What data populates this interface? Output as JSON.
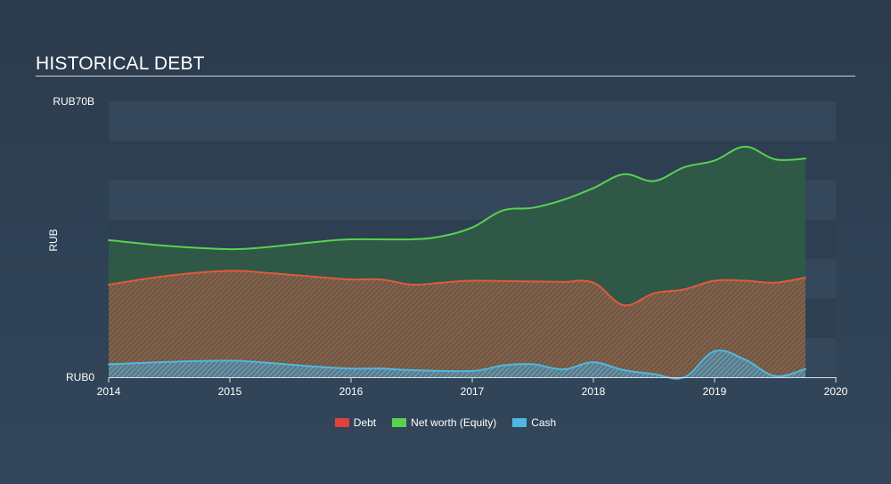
{
  "title": "HISTORICAL DEBT",
  "colors": {
    "debt": "#e0413a",
    "debt_line": "#e05a3a",
    "equity": "#59d24f",
    "cash": "#4fb8e0"
  },
  "legend": [
    {
      "label": "Debt",
      "color": "#e0413a"
    },
    {
      "label": "Net worth (Equity)",
      "color": "#59d24f"
    },
    {
      "label": "Cash",
      "color": "#4fb8e0"
    }
  ],
  "chart_data": {
    "type": "area",
    "title": "HISTORICAL DEBT",
    "xlabel": "",
    "ylabel": "RUB",
    "xlim": [
      2014,
      2020
    ],
    "ylim": [
      0,
      70
    ],
    "y_unit": "RUB billions",
    "x_ticks": [
      {
        "value": 2014,
        "label": "2014"
      },
      {
        "value": 2015,
        "label": "2015"
      },
      {
        "value": 2016,
        "label": "2016"
      },
      {
        "value": 2017,
        "label": "2017"
      },
      {
        "value": 2018,
        "label": "2018"
      },
      {
        "value": 2019,
        "label": "2019"
      },
      {
        "value": 2020,
        "label": "2020"
      }
    ],
    "y_ticks": [
      {
        "value": 0,
        "label": "RUB0"
      },
      {
        "value": 70,
        "label": "RUB70B"
      }
    ],
    "series": [
      {
        "name": "Net worth (Equity)",
        "key": "equity",
        "points": [
          [
            2014.0,
            34.8
          ],
          [
            2014.5,
            33.3
          ],
          [
            2015.0,
            32.5
          ],
          [
            2015.3,
            33.0
          ],
          [
            2015.7,
            34.3
          ],
          [
            2016.0,
            35.0
          ],
          [
            2016.5,
            35.0
          ],
          [
            2016.75,
            35.8
          ],
          [
            2017.0,
            38.0
          ],
          [
            2017.25,
            42.3
          ],
          [
            2017.5,
            43.0
          ],
          [
            2017.75,
            45.0
          ],
          [
            2018.0,
            48.0
          ],
          [
            2018.25,
            51.5
          ],
          [
            2018.5,
            49.8
          ],
          [
            2018.75,
            53.3
          ],
          [
            2019.0,
            55.0
          ],
          [
            2019.25,
            58.5
          ],
          [
            2019.5,
            55.3
          ],
          [
            2019.75,
            55.5
          ]
        ]
      },
      {
        "name": "Debt",
        "key": "debt",
        "points": [
          [
            2014.0,
            23.5
          ],
          [
            2014.5,
            25.8
          ],
          [
            2015.0,
            27.0
          ],
          [
            2015.3,
            26.5
          ],
          [
            2015.7,
            25.5
          ],
          [
            2016.0,
            24.8
          ],
          [
            2016.25,
            24.8
          ],
          [
            2016.5,
            23.5
          ],
          [
            2016.75,
            24.0
          ],
          [
            2017.0,
            24.5
          ],
          [
            2017.5,
            24.3
          ],
          [
            2017.75,
            24.2
          ],
          [
            2018.0,
            24.0
          ],
          [
            2018.25,
            18.3
          ],
          [
            2018.5,
            21.3
          ],
          [
            2018.75,
            22.3
          ],
          [
            2019.0,
            24.5
          ],
          [
            2019.25,
            24.5
          ],
          [
            2019.5,
            24.0
          ],
          [
            2019.75,
            25.3
          ]
        ]
      },
      {
        "name": "Cash",
        "key": "cash",
        "points": [
          [
            2014.0,
            3.3
          ],
          [
            2014.5,
            3.9
          ],
          [
            2015.0,
            4.2
          ],
          [
            2015.3,
            3.7
          ],
          [
            2015.7,
            2.7
          ],
          [
            2016.0,
            2.2
          ],
          [
            2016.25,
            2.2
          ],
          [
            2016.5,
            1.8
          ],
          [
            2017.0,
            1.6
          ],
          [
            2017.25,
            3.0
          ],
          [
            2017.5,
            3.3
          ],
          [
            2017.75,
            2.0
          ],
          [
            2018.0,
            3.8
          ],
          [
            2018.25,
            1.8
          ],
          [
            2018.5,
            0.8
          ],
          [
            2018.75,
            0.0
          ],
          [
            2019.0,
            6.6
          ],
          [
            2019.25,
            4.5
          ],
          [
            2019.5,
            0.3
          ],
          [
            2019.75,
            2.1
          ]
        ]
      }
    ]
  }
}
